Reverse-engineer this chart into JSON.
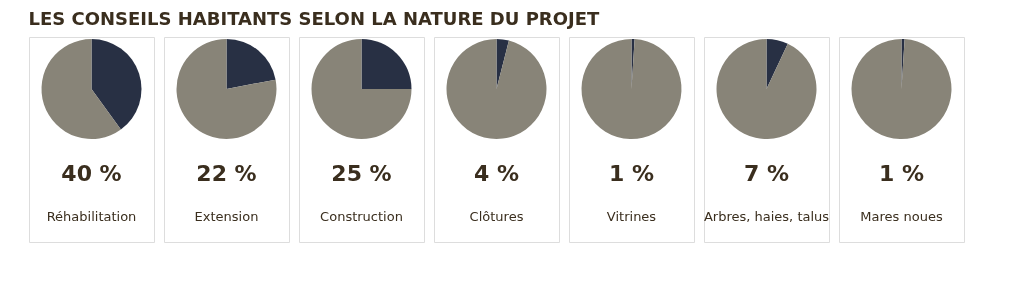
{
  "chart_data": [
    {
      "type": "pie",
      "title": "LES CONSEILS HABITANTS SELON LA NATURE DU PROJET",
      "xlabel": "Réhabilitation",
      "categories": [
        null,
        null
      ],
      "values": [
        40,
        60
      ],
      "colors": [
        "#283044",
        "#888478"
      ],
      "annotations": [
        "40 %"
      ],
      "legend": false
    },
    {
      "type": "pie",
      "xlabel": "Extension",
      "categories": [
        null,
        null
      ],
      "values": [
        22,
        78
      ],
      "colors": [
        "#283044",
        "#888478"
      ],
      "annotations": [
        "22 %"
      ],
      "legend": false
    },
    {
      "type": "pie",
      "xlabel": "Construction",
      "categories": [
        null,
        null
      ],
      "values": [
        25,
        75
      ],
      "colors": [
        "#283044",
        "#888478"
      ],
      "annotations": [
        "25 %"
      ],
      "legend": false
    },
    {
      "type": "pie",
      "xlabel": "Clôtures",
      "categories": [
        null,
        null
      ],
      "values": [
        4,
        96
      ],
      "colors": [
        "#283044",
        "#888478"
      ],
      "annotations": [
        "4 %"
      ],
      "legend": false
    },
    {
      "type": "pie",
      "xlabel": "Vitrines",
      "categories": [
        null,
        null
      ],
      "values": [
        1,
        99
      ],
      "colors": [
        "#283044",
        "#888478"
      ],
      "annotations": [
        "1 %"
      ],
      "legend": false
    },
    {
      "type": "pie",
      "xlabel": "Arbres, haies, talus",
      "categories": [
        null,
        null
      ],
      "values": [
        7,
        93
      ],
      "colors": [
        "#283044",
        "#888478"
      ],
      "annotations": [
        "7 %"
      ],
      "legend": false
    },
    {
      "type": "pie",
      "xlabel": "Mares noues",
      "categories": [
        null,
        null
      ],
      "values": [
        1,
        99
      ],
      "colors": [
        "#283044",
        "#888478"
      ],
      "annotations": [
        "1 %"
      ],
      "legend": false
    }
  ]
}
